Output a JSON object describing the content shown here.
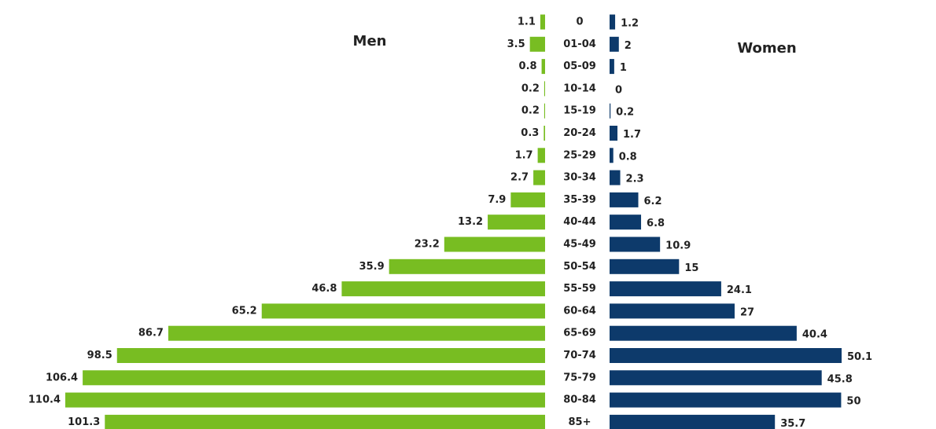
{
  "chart_data": {
    "type": "pyramid",
    "categories": [
      "0",
      "01-04",
      "05-09",
      "10-14",
      "15-19",
      "20-24",
      "25-29",
      "30-34",
      "35-39",
      "40-44",
      "45-49",
      "50-54",
      "55-59",
      "60-64",
      "65-69",
      "70-74",
      "75-79",
      "80-84",
      "85+"
    ],
    "series": [
      {
        "name": "Men",
        "color": "#78bd22",
        "values": [
          1.1,
          3.5,
          0.8,
          0.2,
          0.2,
          0.3,
          1.7,
          2.7,
          7.9,
          13.2,
          23.2,
          35.9,
          46.8,
          65.2,
          86.7,
          98.5,
          106.4,
          110.4,
          101.3
        ]
      },
      {
        "name": "Women",
        "color": "#0d3a6b",
        "values": [
          1.2,
          2,
          1,
          0,
          0.2,
          1.7,
          0.8,
          2.3,
          6.2,
          6.8,
          10.9,
          15,
          24.1,
          27,
          40.4,
          50.1,
          45.8,
          50,
          35.7
        ]
      }
    ]
  }
}
